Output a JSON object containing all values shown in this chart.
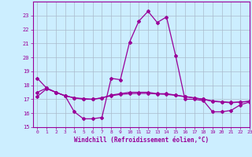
{
  "xlabel": "Windchill (Refroidissement éolien,°C)",
  "background_color": "#cceeff",
  "grid_color": "#aabbcc",
  "line_color": "#990099",
  "x": [
    0,
    1,
    2,
    3,
    4,
    5,
    6,
    7,
    8,
    9,
    10,
    11,
    12,
    13,
    14,
    15,
    16,
    17,
    18,
    19,
    20,
    21,
    22,
    23
  ],
  "curve1": [
    18.5,
    17.8,
    17.5,
    17.25,
    16.1,
    15.6,
    15.6,
    15.7,
    18.5,
    18.4,
    21.1,
    22.6,
    23.3,
    22.5,
    22.9,
    20.1,
    17.0,
    17.0,
    16.9,
    16.1,
    16.1,
    16.2,
    16.6,
    16.8
  ],
  "curve2": [
    17.5,
    17.8,
    17.5,
    17.25,
    17.1,
    17.0,
    17.0,
    17.1,
    17.3,
    17.4,
    17.5,
    17.5,
    17.5,
    17.4,
    17.4,
    17.3,
    17.2,
    17.1,
    17.0,
    16.85,
    16.8,
    16.75,
    16.8,
    16.85
  ],
  "curve3": [
    17.2,
    17.75,
    17.5,
    17.25,
    17.1,
    17.05,
    17.0,
    17.1,
    17.25,
    17.35,
    17.4,
    17.42,
    17.42,
    17.38,
    17.35,
    17.28,
    17.18,
    17.1,
    17.0,
    16.88,
    16.82,
    16.78,
    16.8,
    16.86
  ],
  "ylim": [
    15,
    24
  ],
  "xlim": [
    -0.5,
    23
  ],
  "yticks": [
    15,
    16,
    17,
    18,
    19,
    20,
    21,
    22,
    23
  ],
  "xticks": [
    0,
    1,
    2,
    3,
    4,
    5,
    6,
    7,
    8,
    9,
    10,
    11,
    12,
    13,
    14,
    15,
    16,
    17,
    18,
    19,
    20,
    21,
    22,
    23
  ]
}
